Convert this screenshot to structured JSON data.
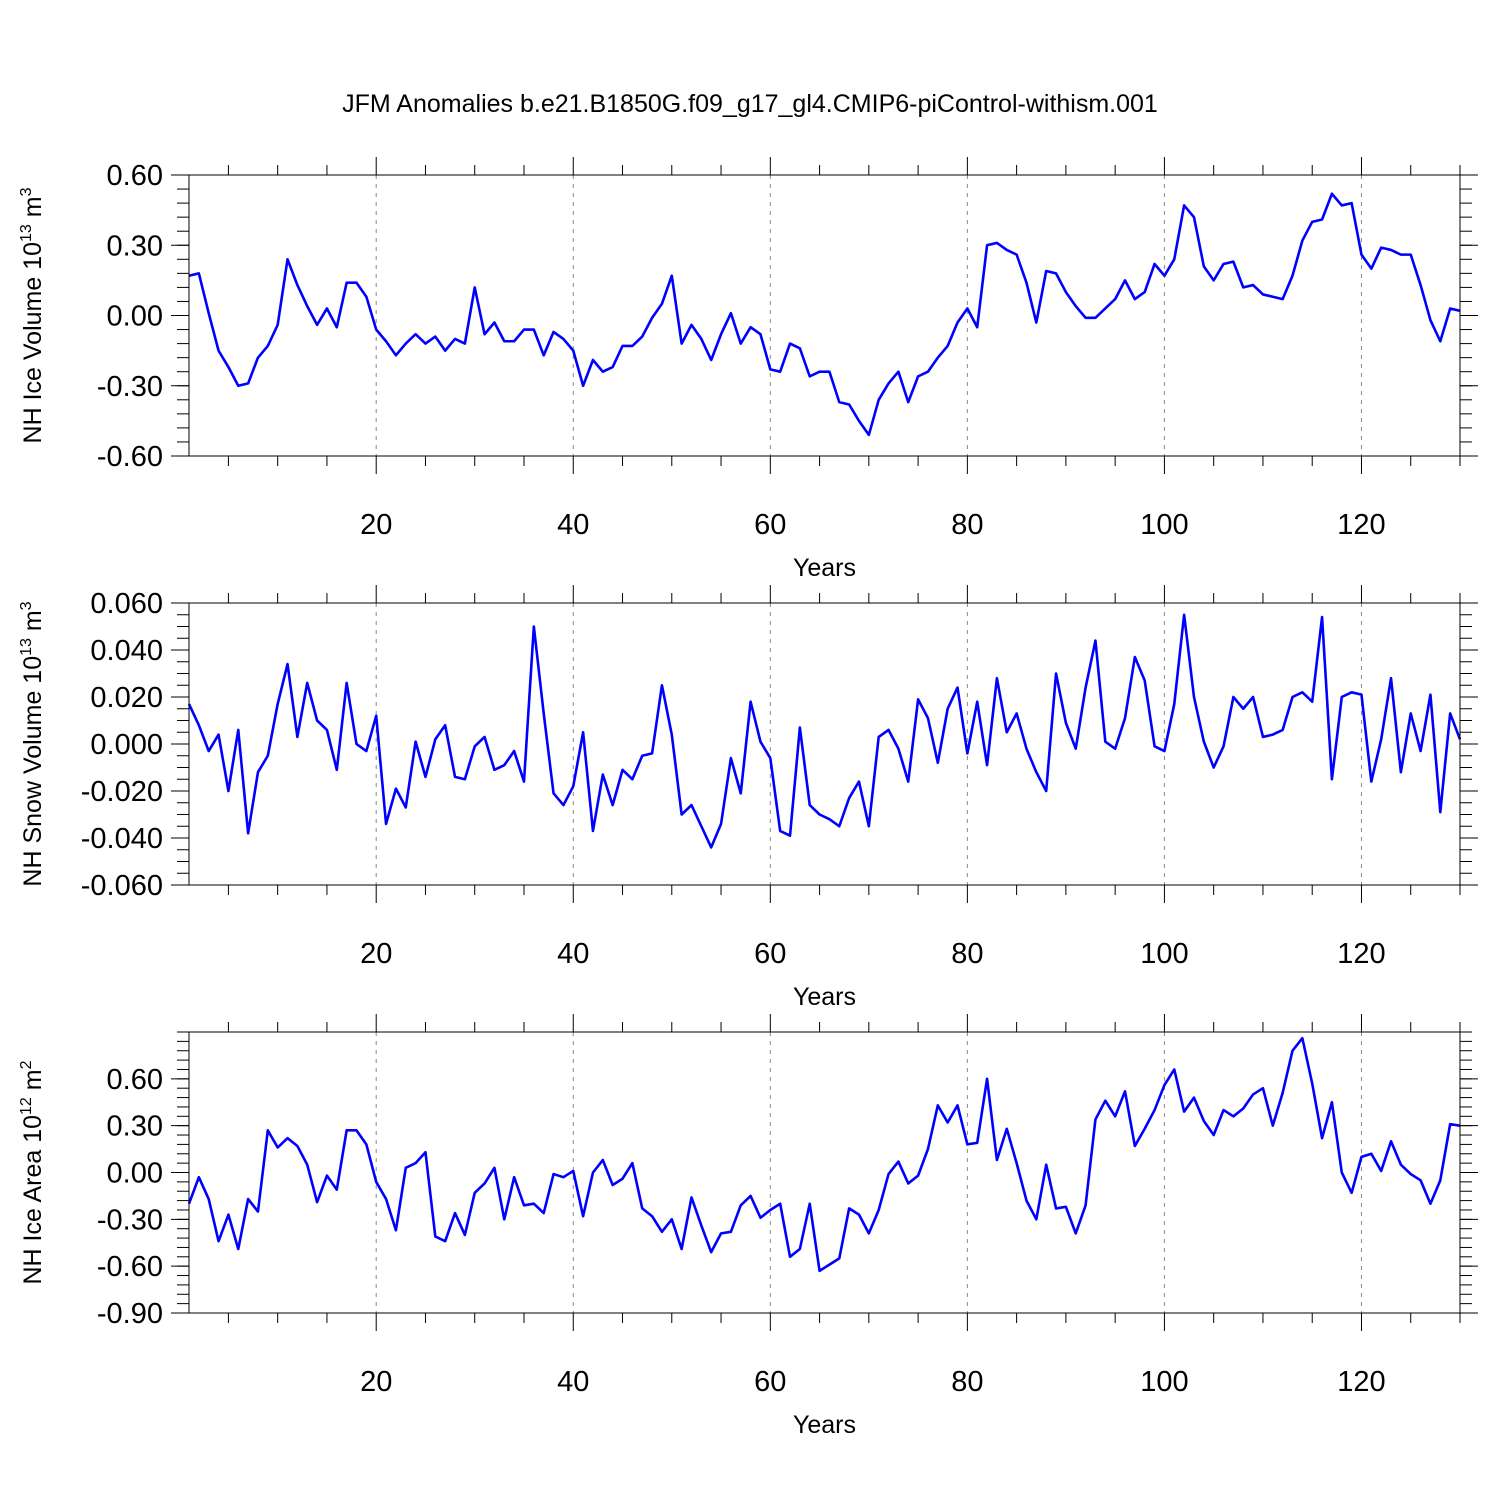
{
  "figure": {
    "title": "JFM Anomalies b.e21.B1850G.f09_g17_gl4.CMIP6-piControl-withism.001",
    "line_color": "#0000ff",
    "grid_color": "#888888"
  },
  "chart_data": [
    {
      "type": "line",
      "name": "ice-volume",
      "ylabel": "NH Ice Volume 10",
      "ylabel_sup": "13",
      "ylabel_unit": "m",
      "ylabel_unit_sup": "3",
      "xlabel": "Years",
      "xlim": [
        1,
        130
      ],
      "ylim": [
        -0.6,
        0.6
      ],
      "x_ticks": [
        20,
        40,
        60,
        80,
        100,
        120
      ],
      "x_tick_labels": [
        "20",
        "40",
        "60",
        "80",
        "100",
        "120"
      ],
      "y_ticks": [
        -0.6,
        -0.3,
        0.0,
        0.3,
        0.6
      ],
      "y_tick_labels": [
        "-0.60",
        "-0.30",
        "0.00",
        "0.30",
        "0.60"
      ],
      "y_minor_step": 0.06,
      "grid": "vertical-dashed-at-major-x",
      "x": [
        1,
        2,
        3,
        4,
        5,
        6,
        7,
        8,
        9,
        10,
        11,
        12,
        13,
        14,
        15,
        16,
        17,
        18,
        19,
        20,
        21,
        22,
        23,
        24,
        25,
        26,
        27,
        28,
        29,
        30,
        31,
        32,
        33,
        34,
        35,
        36,
        37,
        38,
        39,
        40,
        41,
        42,
        43,
        44,
        45,
        46,
        47,
        48,
        49,
        50,
        51,
        52,
        53,
        54,
        55,
        56,
        57,
        58,
        59,
        60,
        61,
        62,
        63,
        64,
        65,
        66,
        67,
        68,
        69,
        70,
        71,
        72,
        73,
        74,
        75,
        76,
        77,
        78,
        79,
        80,
        81,
        82,
        83,
        84,
        85,
        86,
        87,
        88,
        89,
        90,
        91,
        92,
        93,
        94,
        95,
        96,
        97,
        98,
        99,
        100,
        101,
        102,
        103,
        104,
        105,
        106,
        107,
        108,
        109,
        110,
        111,
        112,
        113,
        114,
        115,
        116,
        117,
        118,
        119,
        120,
        121,
        122,
        123,
        124,
        125,
        126,
        127,
        128,
        129,
        130
      ],
      "values": [
        0.17,
        0.18,
        0.01,
        -0.15,
        -0.22,
        -0.3,
        -0.29,
        -0.18,
        -0.13,
        -0.04,
        0.24,
        0.13,
        0.04,
        -0.04,
        0.03,
        -0.05,
        0.14,
        0.14,
        0.08,
        -0.06,
        -0.11,
        -0.17,
        -0.12,
        -0.08,
        -0.12,
        -0.09,
        -0.15,
        -0.1,
        -0.12,
        0.12,
        -0.08,
        -0.03,
        -0.11,
        -0.11,
        -0.06,
        -0.06,
        -0.17,
        -0.07,
        -0.1,
        -0.15,
        -0.3,
        -0.19,
        -0.24,
        -0.22,
        -0.13,
        -0.13,
        -0.09,
        -0.01,
        0.05,
        0.17,
        -0.12,
        -0.04,
        -0.1,
        -0.19,
        -0.08,
        0.01,
        -0.12,
        -0.05,
        -0.08,
        -0.23,
        -0.24,
        -0.12,
        -0.14,
        -0.26,
        -0.24,
        -0.24,
        -0.37,
        -0.38,
        -0.45,
        -0.51,
        -0.36,
        -0.29,
        -0.24,
        -0.37,
        -0.26,
        -0.24,
        -0.18,
        -0.13,
        -0.03,
        0.03,
        -0.05,
        0.3,
        0.31,
        0.28,
        0.26,
        0.14,
        -0.03,
        0.19,
        0.18,
        0.1,
        0.04,
        -0.01,
        -0.01,
        0.03,
        0.07,
        0.15,
        0.07,
        0.1,
        0.22,
        0.17,
        0.24,
        0.47,
        0.42,
        0.21,
        0.15,
        0.22,
        0.23,
        0.12,
        0.13,
        0.09,
        0.08,
        0.07,
        0.17,
        0.32,
        0.4,
        0.41,
        0.52,
        0.47,
        0.48,
        0.26,
        0.2,
        0.29,
        0.28,
        0.26,
        0.26,
        0.13,
        -0.02,
        -0.11,
        0.03,
        0.02
      ]
    },
    {
      "type": "line",
      "name": "snow-volume",
      "ylabel": "NH Snow Volume 10",
      "ylabel_sup": "13",
      "ylabel_unit": "m",
      "ylabel_unit_sup": "3",
      "xlabel": "Years",
      "xlim": [
        1,
        130
      ],
      "ylim": [
        -0.06,
        0.06
      ],
      "x_ticks": [
        20,
        40,
        60,
        80,
        100,
        120
      ],
      "x_tick_labels": [
        "20",
        "40",
        "60",
        "80",
        "100",
        "120"
      ],
      "y_ticks": [
        -0.06,
        -0.04,
        -0.02,
        0.0,
        0.02,
        0.04,
        0.06
      ],
      "y_tick_labels": [
        "-0.060",
        "-0.040",
        "-0.020",
        "0.000",
        "0.020",
        "0.040",
        "0.060"
      ],
      "y_minor_step": 0.005,
      "grid": "vertical-dashed-at-major-x",
      "x": [
        1,
        2,
        3,
        4,
        5,
        6,
        7,
        8,
        9,
        10,
        11,
        12,
        13,
        14,
        15,
        16,
        17,
        18,
        19,
        20,
        21,
        22,
        23,
        24,
        25,
        26,
        27,
        28,
        29,
        30,
        31,
        32,
        33,
        34,
        35,
        36,
        37,
        38,
        39,
        40,
        41,
        42,
        43,
        44,
        45,
        46,
        47,
        48,
        49,
        50,
        51,
        52,
        53,
        54,
        55,
        56,
        57,
        58,
        59,
        60,
        61,
        62,
        63,
        64,
        65,
        66,
        67,
        68,
        69,
        70,
        71,
        72,
        73,
        74,
        75,
        76,
        77,
        78,
        79,
        80,
        81,
        82,
        83,
        84,
        85,
        86,
        87,
        88,
        89,
        90,
        91,
        92,
        93,
        94,
        95,
        96,
        97,
        98,
        99,
        100,
        101,
        102,
        103,
        104,
        105,
        106,
        107,
        108,
        109,
        110,
        111,
        112,
        113,
        114,
        115,
        116,
        117,
        118,
        119,
        120,
        121,
        122,
        123,
        124,
        125,
        126,
        127,
        128,
        129,
        130
      ],
      "values": [
        0.017,
        0.008,
        -0.003,
        0.004,
        -0.02,
        0.006,
        -0.038,
        -0.012,
        -0.005,
        0.017,
        0.034,
        0.003,
        0.026,
        0.01,
        0.006,
        -0.011,
        0.026,
        0.0,
        -0.003,
        0.012,
        -0.034,
        -0.019,
        -0.027,
        0.001,
        -0.014,
        0.002,
        0.008,
        -0.014,
        -0.015,
        -0.001,
        0.003,
        -0.011,
        -0.009,
        -0.003,
        -0.016,
        0.05,
        0.013,
        -0.021,
        -0.026,
        -0.018,
        0.005,
        -0.037,
        -0.013,
        -0.026,
        -0.011,
        -0.015,
        -0.005,
        -0.004,
        0.025,
        0.004,
        -0.03,
        -0.026,
        -0.035,
        -0.044,
        -0.034,
        -0.006,
        -0.021,
        0.018,
        0.001,
        -0.006,
        -0.037,
        -0.039,
        0.007,
        -0.026,
        -0.03,
        -0.032,
        -0.035,
        -0.023,
        -0.016,
        -0.035,
        0.003,
        0.006,
        -0.002,
        -0.016,
        0.019,
        0.011,
        -0.008,
        0.015,
        0.024,
        -0.004,
        0.018,
        -0.009,
        0.028,
        0.005,
        0.013,
        -0.002,
        -0.012,
        -0.02,
        0.03,
        0.009,
        -0.002,
        0.024,
        0.044,
        0.001,
        -0.002,
        0.011,
        0.037,
        0.027,
        -0.001,
        -0.003,
        0.017,
        0.055,
        0.02,
        0.001,
        -0.01,
        -0.001,
        0.02,
        0.015,
        0.02,
        0.003,
        0.004,
        0.006,
        0.02,
        0.022,
        0.018,
        0.054,
        -0.015,
        0.02,
        0.022,
        0.021,
        -0.016,
        0.002,
        0.028,
        -0.012,
        0.013,
        -0.003,
        0.021,
        -0.029,
        0.013,
        0.002
      ]
    },
    {
      "type": "line",
      "name": "ice-area",
      "ylabel": "NH Ice Area 10",
      "ylabel_sup": "12",
      "ylabel_unit": "m",
      "ylabel_unit_sup": "2",
      "xlabel": "Years",
      "xlim": [
        1,
        130
      ],
      "ylim": [
        -0.9,
        0.9
      ],
      "x_ticks": [
        20,
        40,
        60,
        80,
        100,
        120
      ],
      "x_tick_labels": [
        "20",
        "40",
        "60",
        "80",
        "100",
        "120"
      ],
      "y_ticks": [
        -0.9,
        -0.6,
        -0.3,
        0.0,
        0.3,
        0.6
      ],
      "y_tick_labels": [
        "-0.90",
        "-0.60",
        "-0.30",
        "0.00",
        "0.30",
        "0.60"
      ],
      "y_minor_step": 0.06,
      "grid": "vertical-dashed-at-major-x",
      "x": [
        1,
        2,
        3,
        4,
        5,
        6,
        7,
        8,
        9,
        10,
        11,
        12,
        13,
        14,
        15,
        16,
        17,
        18,
        19,
        20,
        21,
        22,
        23,
        24,
        25,
        26,
        27,
        28,
        29,
        30,
        31,
        32,
        33,
        34,
        35,
        36,
        37,
        38,
        39,
        40,
        41,
        42,
        43,
        44,
        45,
        46,
        47,
        48,
        49,
        50,
        51,
        52,
        53,
        54,
        55,
        56,
        57,
        58,
        59,
        60,
        61,
        62,
        63,
        64,
        65,
        66,
        67,
        68,
        69,
        70,
        71,
        72,
        73,
        74,
        75,
        76,
        77,
        78,
        79,
        80,
        81,
        82,
        83,
        84,
        85,
        86,
        87,
        88,
        89,
        90,
        91,
        92,
        93,
        94,
        95,
        96,
        97,
        98,
        99,
        100,
        101,
        102,
        103,
        104,
        105,
        106,
        107,
        108,
        109,
        110,
        111,
        112,
        113,
        114,
        115,
        116,
        117,
        118,
        119,
        120,
        121,
        122,
        123,
        124,
        125,
        126,
        127,
        128,
        129,
        130
      ],
      "values": [
        -0.2,
        -0.03,
        -0.17,
        -0.44,
        -0.27,
        -0.49,
        -0.17,
        -0.25,
        0.27,
        0.16,
        0.22,
        0.17,
        0.05,
        -0.19,
        -0.02,
        -0.11,
        0.27,
        0.27,
        0.18,
        -0.06,
        -0.17,
        -0.37,
        0.03,
        0.06,
        0.13,
        -0.41,
        -0.44,
        -0.26,
        -0.4,
        -0.13,
        -0.07,
        0.03,
        -0.3,
        -0.03,
        -0.21,
        -0.2,
        -0.26,
        -0.01,
        -0.03,
        0.01,
        -0.28,
        0.0,
        0.08,
        -0.08,
        -0.04,
        0.06,
        -0.23,
        -0.28,
        -0.38,
        -0.3,
        -0.49,
        -0.16,
        -0.34,
        -0.51,
        -0.39,
        -0.38,
        -0.21,
        -0.15,
        -0.29,
        -0.24,
        -0.2,
        -0.54,
        -0.49,
        -0.2,
        -0.63,
        -0.59,
        -0.55,
        -0.23,
        -0.27,
        -0.39,
        -0.24,
        -0.01,
        0.07,
        -0.07,
        -0.02,
        0.15,
        0.43,
        0.32,
        0.43,
        0.18,
        0.19,
        0.6,
        0.08,
        0.28,
        0.06,
        -0.18,
        -0.3,
        0.05,
        -0.23,
        -0.22,
        -0.39,
        -0.21,
        0.34,
        0.46,
        0.36,
        0.52,
        0.17,
        0.28,
        0.4,
        0.56,
        0.66,
        0.39,
        0.48,
        0.33,
        0.24,
        0.4,
        0.36,
        0.41,
        0.5,
        0.54,
        0.3,
        0.51,
        0.78,
        0.86,
        0.57,
        0.22,
        0.45,
        0.0,
        -0.13,
        0.1,
        0.12,
        0.01,
        0.2,
        0.05,
        -0.01,
        -0.05,
        -0.2,
        -0.05,
        0.31,
        0.3
      ]
    }
  ]
}
